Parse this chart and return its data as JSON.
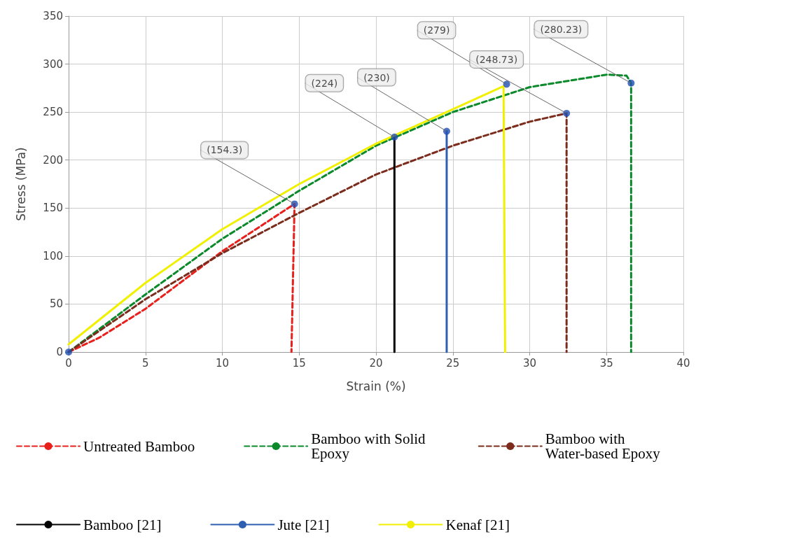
{
  "chart_data": {
    "type": "line",
    "xlabel": "Strain (%)",
    "ylabel": "Stress (MPa)",
    "xlim": [
      0,
      40
    ],
    "xticks": [
      0,
      5,
      10,
      15,
      20,
      25,
      30,
      35,
      40
    ],
    "ylim": [
      0,
      350
    ],
    "yticks": [
      0,
      50,
      100,
      150,
      200,
      250,
      300,
      350
    ],
    "grid": true,
    "legend": "bottom",
    "series": [
      {
        "name": "Untreated Bamboo",
        "color": "#e8201c",
        "line_style": "dashed",
        "x": [
          0,
          2,
          5,
          10,
          14.7,
          14.5
        ],
        "values": [
          0,
          15,
          45,
          105,
          154.3,
          0
        ]
      },
      {
        "name": "Bamboo with Solid Epoxy",
        "color": "#0a8a2a",
        "line_style": "dashed",
        "x": [
          0,
          5,
          10,
          15,
          20,
          25,
          30,
          35,
          36.3,
          36.6,
          36.6
        ],
        "values": [
          0,
          60,
          118,
          168,
          215,
          250,
          276,
          289,
          288,
          280.23,
          0
        ]
      },
      {
        "name": "Bamboo with Water-based Epoxy",
        "color": "#7b2c1c",
        "line_style": "dashed",
        "x": [
          0,
          5,
          10,
          15,
          20,
          25,
          30,
          32.4,
          32.4
        ],
        "values": [
          0,
          55,
          103,
          145,
          185,
          215,
          240,
          248.73,
          0
        ]
      },
      {
        "name": "Bamboo [21]",
        "color": "#000000",
        "line_style": "solid",
        "x": [
          21.2,
          21.2
        ],
        "values": [
          224,
          0
        ]
      },
      {
        "name": "Jute [21]",
        "color": "#2f5fb0",
        "line_style": "solid",
        "x": [
          24.6,
          24.6
        ],
        "values": [
          230,
          0
        ]
      },
      {
        "name": "Kenaf [21]",
        "color": "#f0f000",
        "line_style": "solid",
        "x": [
          0,
          5,
          10,
          15,
          20,
          25,
          28.3,
          28.4
        ],
        "values": [
          8,
          72,
          128,
          175,
          217,
          253,
          277,
          0
        ]
      },
      {
        "type": "scatter",
        "color": "#1f4fb4",
        "marker": "circle",
        "x": [
          0,
          14.7,
          21.2,
          24.6,
          28.5,
          32.4,
          36.6
        ],
        "values": [
          0,
          154.3,
          224,
          230,
          279,
          248.73,
          280.23
        ]
      }
    ],
    "annotations": [
      {
        "text": "(154.3)",
        "x": 14.7,
        "y": 154.3
      },
      {
        "text": "(224)",
        "x": 21.2,
        "y": 224
      },
      {
        "text": "(230)",
        "x": 24.6,
        "y": 230
      },
      {
        "text": "(279)",
        "x": 28.5,
        "y": 279
      },
      {
        "text": "(248.73)",
        "x": 32.4,
        "y": 248.73
      },
      {
        "text": "(280.23)",
        "x": 36.6,
        "y": 280.23
      }
    ]
  }
}
